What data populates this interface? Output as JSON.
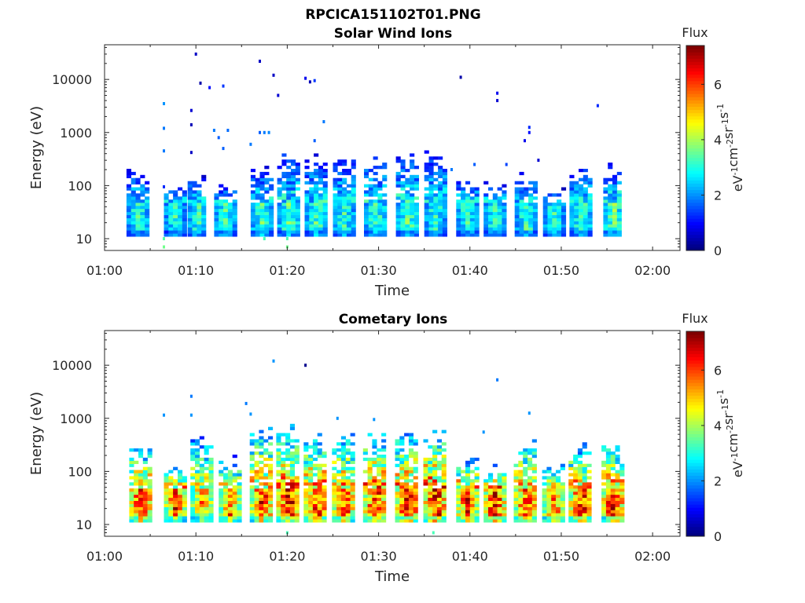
{
  "figure": {
    "title": "RPCICA151102T01.PNG"
  },
  "chart_data": [
    {
      "type": "heatmap",
      "title": "Solar Wind Ions",
      "xlabel": "Time",
      "ylabel": "Energy (eV)",
      "x_ticks": [
        "01:00",
        "01:10",
        "01:20",
        "01:30",
        "01:40",
        "01:50",
        "02:00"
      ],
      "y_ticks": [
        "10",
        "100",
        "1000",
        "10000"
      ],
      "y_scale": "log",
      "ylim": [
        6,
        45000
      ],
      "xlim_minutes": [
        0,
        63
      ],
      "colorbar": {
        "title": "Flux",
        "label": "eV-1cm-2sr-1s-1",
        "ticks": [
          "0",
          "2",
          "4",
          "6"
        ],
        "range": [
          0,
          7.4
        ],
        "colormap": "jet"
      },
      "seed": 11,
      "bursts": [
        {
          "t": 3.5,
          "w": 1.1,
          "top": 160,
          "peak": 3.2
        },
        {
          "t": 7.5,
          "w": 1.0,
          "top": 90,
          "peak": 3.0
        },
        {
          "t": 10.0,
          "w": 0.9,
          "top": 120,
          "peak": 3.1
        },
        {
          "t": 13.0,
          "w": 1.0,
          "top": 90,
          "peak": 3.2
        },
        {
          "t": 17.0,
          "w": 1.0,
          "top": 180,
          "peak": 3.3
        },
        {
          "t": 20.0,
          "w": 1.1,
          "top": 350,
          "peak": 3.4
        },
        {
          "t": 23.0,
          "w": 1.1,
          "top": 300,
          "peak": 3.3
        },
        {
          "t": 26.0,
          "w": 1.0,
          "top": 280,
          "peak": 3.2
        },
        {
          "t": 29.5,
          "w": 1.1,
          "top": 300,
          "peak": 3.3
        },
        {
          "t": 33.0,
          "w": 1.1,
          "top": 350,
          "peak": 3.4
        },
        {
          "t": 36.0,
          "w": 1.0,
          "top": 400,
          "peak": 3.2
        },
        {
          "t": 39.5,
          "w": 1.0,
          "top": 120,
          "peak": 3.2
        },
        {
          "t": 42.5,
          "w": 1.0,
          "top": 90,
          "peak": 3.1
        },
        {
          "t": 46.0,
          "w": 1.1,
          "top": 150,
          "peak": 3.2
        },
        {
          "t": 49.0,
          "w": 1.0,
          "top": 70,
          "peak": 3.1
        },
        {
          "t": 52.0,
          "w": 1.1,
          "top": 180,
          "peak": 3.3
        },
        {
          "t": 55.5,
          "w": 0.9,
          "top": 200,
          "peak": 3.6
        }
      ],
      "points": [
        {
          "t": 10.0,
          "e": 30000,
          "v": 0.5
        },
        {
          "t": 10.5,
          "e": 8500,
          "v": 0.3
        },
        {
          "t": 11.5,
          "e": 7000,
          "v": 1.0
        },
        {
          "t": 13.0,
          "e": 7500,
          "v": 1.3
        },
        {
          "t": 17.0,
          "e": 22000,
          "v": 0.5
        },
        {
          "t": 18.5,
          "e": 12000,
          "v": 0.5
        },
        {
          "t": 19.0,
          "e": 5000,
          "v": 0.6
        },
        {
          "t": 22.0,
          "e": 10500,
          "v": 0.8
        },
        {
          "t": 22.5,
          "e": 9000,
          "v": 0.4
        },
        {
          "t": 23.0,
          "e": 9500,
          "v": 1.3
        },
        {
          "t": 39.0,
          "e": 11000,
          "v": 0.3
        },
        {
          "t": 43.0,
          "e": 5500,
          "v": 0.8
        },
        {
          "t": 43.0,
          "e": 4000,
          "v": 0.6
        },
        {
          "t": 54.0,
          "e": 3200,
          "v": 1.2
        },
        {
          "t": 6.5,
          "e": 3500,
          "v": 2.0
        },
        {
          "t": 9.5,
          "e": 2600,
          "v": 0.6
        },
        {
          "t": 9.5,
          "e": 1400,
          "v": 0.4
        },
        {
          "t": 6.5,
          "e": 1200,
          "v": 1.8
        },
        {
          "t": 6.5,
          "e": 450,
          "v": 1.8
        },
        {
          "t": 9.5,
          "e": 420,
          "v": 0.5
        },
        {
          "t": 12.0,
          "e": 1100,
          "v": 1.8
        },
        {
          "t": 12.5,
          "e": 800,
          "v": 1.6
        },
        {
          "t": 13.5,
          "e": 1100,
          "v": 1.7
        },
        {
          "t": 13.0,
          "e": 500,
          "v": 1.6
        },
        {
          "t": 16.0,
          "e": 600,
          "v": 1.8
        },
        {
          "t": 17.0,
          "e": 1000,
          "v": 1.6
        },
        {
          "t": 17.5,
          "e": 1000,
          "v": 1.8
        },
        {
          "t": 18.0,
          "e": 1000,
          "v": 1.9
        },
        {
          "t": 24.0,
          "e": 1600,
          "v": 1.8
        },
        {
          "t": 23.0,
          "e": 700,
          "v": 1.6
        },
        {
          "t": 46.5,
          "e": 1250,
          "v": 1.2
        },
        {
          "t": 46.5,
          "e": 1000,
          "v": 1.0
        },
        {
          "t": 46.0,
          "e": 700,
          "v": 0.8
        },
        {
          "t": 47.5,
          "e": 300,
          "v": 0.6
        },
        {
          "t": 40.5,
          "e": 250,
          "v": 1.6
        },
        {
          "t": 44.0,
          "e": 250,
          "v": 1.4
        },
        {
          "t": 38.0,
          "e": 200,
          "v": 1.8
        },
        {
          "t": 6.5,
          "e": 95,
          "v": 1.2
        },
        {
          "t": 6.5,
          "e": 10,
          "v": 3.4
        },
        {
          "t": 6.5,
          "e": 7,
          "v": 3.6
        },
        {
          "t": 20.0,
          "e": 10,
          "v": 3.3
        },
        {
          "t": 20.0,
          "e": 7,
          "v": 3.6
        },
        {
          "t": 17.5,
          "e": 10,
          "v": 3.3
        }
      ]
    },
    {
      "type": "heatmap",
      "title": "Cometary Ions",
      "xlabel": "Time",
      "ylabel": "Energy (eV)",
      "x_ticks": [
        "01:00",
        "01:10",
        "01:20",
        "01:30",
        "01:40",
        "01:50",
        "02:00"
      ],
      "y_ticks": [
        "10",
        "100",
        "1000",
        "10000"
      ],
      "y_scale": "log",
      "ylim": [
        6,
        45000
      ],
      "xlim_minutes": [
        0,
        63
      ],
      "colorbar": {
        "title": "Flux",
        "label": "eV-1cm-2sr-1s-1",
        "ticks": [
          "0",
          "2",
          "4",
          "6"
        ],
        "range": [
          0,
          7.4
        ],
        "colormap": "jet"
      },
      "seed": 29,
      "bursts": [
        {
          "t": 3.8,
          "w": 1.1,
          "top": 220,
          "peak": 6.6
        },
        {
          "t": 7.5,
          "w": 1.0,
          "top": 120,
          "peak": 6.1
        },
        {
          "t": 10.5,
          "w": 1.1,
          "top": 400,
          "peak": 5.4
        },
        {
          "t": 13.5,
          "w": 1.0,
          "top": 150,
          "peak": 5.6
        },
        {
          "t": 17.0,
          "w": 1.1,
          "top": 550,
          "peak": 6.4
        },
        {
          "t": 20.0,
          "w": 1.2,
          "top": 600,
          "peak": 6.7
        },
        {
          "t": 23.0,
          "w": 1.2,
          "top": 400,
          "peak": 6.5
        },
        {
          "t": 26.0,
          "w": 1.1,
          "top": 400,
          "peak": 6.3
        },
        {
          "t": 29.5,
          "w": 1.2,
          "top": 500,
          "peak": 6.5
        },
        {
          "t": 33.0,
          "w": 1.2,
          "top": 500,
          "peak": 6.6
        },
        {
          "t": 36.0,
          "w": 1.1,
          "top": 500,
          "peak": 6.8
        },
        {
          "t": 39.5,
          "w": 1.0,
          "top": 150,
          "peak": 6.3
        },
        {
          "t": 42.5,
          "w": 1.0,
          "top": 120,
          "peak": 6.6
        },
        {
          "t": 46.0,
          "w": 1.2,
          "top": 300,
          "peak": 6.2
        },
        {
          "t": 49.0,
          "w": 1.1,
          "top": 120,
          "peak": 5.9
        },
        {
          "t": 52.0,
          "w": 1.2,
          "top": 250,
          "peak": 6.4
        },
        {
          "t": 55.5,
          "w": 1.1,
          "top": 300,
          "peak": 6.7
        }
      ],
      "points": [
        {
          "t": 18.5,
          "e": 12000,
          "v": 2.0
        },
        {
          "t": 22.0,
          "e": 10000,
          "v": 0.1
        },
        {
          "t": 43.0,
          "e": 5300,
          "v": 1.8
        },
        {
          "t": 9.5,
          "e": 2600,
          "v": 1.8
        },
        {
          "t": 15.5,
          "e": 1900,
          "v": 1.8
        },
        {
          "t": 6.5,
          "e": 1150,
          "v": 2.0
        },
        {
          "t": 9.5,
          "e": 1150,
          "v": 2.0
        },
        {
          "t": 16.0,
          "e": 1200,
          "v": 2.0
        },
        {
          "t": 25.5,
          "e": 1000,
          "v": 2.0
        },
        {
          "t": 29.5,
          "e": 950,
          "v": 2.0
        },
        {
          "t": 41.5,
          "e": 550,
          "v": 2.0
        },
        {
          "t": 46.5,
          "e": 1250,
          "v": 2.0
        },
        {
          "t": 36.0,
          "e": 7,
          "v": 3.3
        },
        {
          "t": 20.0,
          "e": 7,
          "v": 3.3
        }
      ]
    }
  ]
}
